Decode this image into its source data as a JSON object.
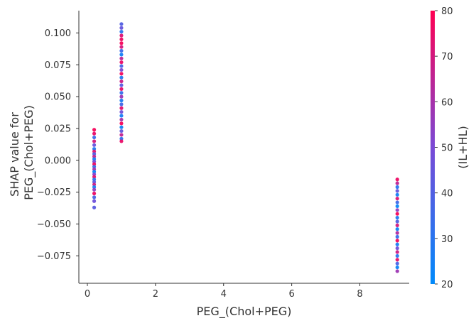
{
  "chart_data": {
    "type": "scatter",
    "title": "",
    "xlabel": "PEG_(Chol+PEG)",
    "ylabel_lines": [
      "SHAP value for",
      "PEG_(Chol+PEG)"
    ],
    "xlim": [
      -0.25,
      9.45
    ],
    "ylim": [
      -0.0965,
      0.1175
    ],
    "xticks": [
      0,
      2,
      4,
      6,
      8
    ],
    "xtick_labels": [
      "0",
      "2",
      "4",
      "6",
      "8"
    ],
    "yticks": [
      -0.075,
      -0.05,
      -0.025,
      0.0,
      0.025,
      0.05,
      0.075,
      0.1
    ],
    "ytick_labels": [
      "−0.075",
      "−0.050",
      "−0.025",
      "0.000",
      "0.025",
      "0.050",
      "0.075",
      "0.100"
    ],
    "grid": false,
    "color_by": {
      "label": "(IL+HL)",
      "range": [
        20,
        80
      ],
      "ticks": [
        20,
        30,
        40,
        50,
        60,
        70,
        80
      ],
      "tick_labels": [
        "20",
        "30",
        "40",
        "50",
        "60",
        "70",
        "80"
      ],
      "colors": [
        "#008afb",
        "#7a4ad6",
        "#ff0052"
      ]
    },
    "series": [
      {
        "x": 0.2,
        "y": [
          0.024,
          0.021,
          0.018,
          0.015,
          0.012,
          0.009,
          0.007,
          0.005,
          0.003,
          0.001,
          -0.001,
          -0.003,
          -0.005,
          -0.007,
          -0.009,
          -0.011,
          -0.013,
          -0.015,
          -0.017,
          -0.019,
          -0.021,
          -0.023,
          -0.026,
          -0.029,
          -0.032,
          -0.037
        ],
        "color_value": [
          78,
          75,
          35,
          70,
          45,
          28,
          72,
          40,
          65,
          25,
          48,
          77,
          33,
          60,
          22,
          52,
          74,
          30,
          43,
          68,
          26,
          55,
          76,
          38,
          47,
          42
        ]
      },
      {
        "x": 1.0,
        "y": [
          0.107,
          0.104,
          0.101,
          0.098,
          0.095,
          0.092,
          0.089,
          0.086,
          0.083,
          0.08,
          0.077,
          0.074,
          0.071,
          0.068,
          0.065,
          0.062,
          0.059,
          0.056,
          0.053,
          0.05,
          0.047,
          0.044,
          0.041,
          0.038,
          0.035,
          0.032,
          0.029,
          0.026,
          0.023,
          0.02,
          0.017,
          0.015
        ],
        "color_value": [
          40,
          45,
          30,
          72,
          76,
          78,
          70,
          35,
          25,
          65,
          75,
          38,
          50,
          77,
          28,
          68,
          42,
          74,
          33,
          58,
          27,
          36,
          73,
          48,
          26,
          60,
          78,
          24,
          44,
          66,
          32,
          75
        ]
      },
      {
        "x": 9.1,
        "y": [
          -0.015,
          -0.018,
          -0.021,
          -0.024,
          -0.027,
          -0.03,
          -0.033,
          -0.036,
          -0.039,
          -0.042,
          -0.045,
          -0.048,
          -0.051,
          -0.054,
          -0.057,
          -0.06,
          -0.063,
          -0.066,
          -0.069,
          -0.072,
          -0.075,
          -0.078,
          -0.081,
          -0.084,
          -0.087
        ],
        "color_value": [
          76,
          65,
          30,
          45,
          25,
          72,
          35,
          22,
          55,
          78,
          28,
          40,
          70,
          24,
          62,
          33,
          77,
          26,
          48,
          68,
          30,
          74,
          38,
          23,
          58
        ]
      }
    ]
  }
}
